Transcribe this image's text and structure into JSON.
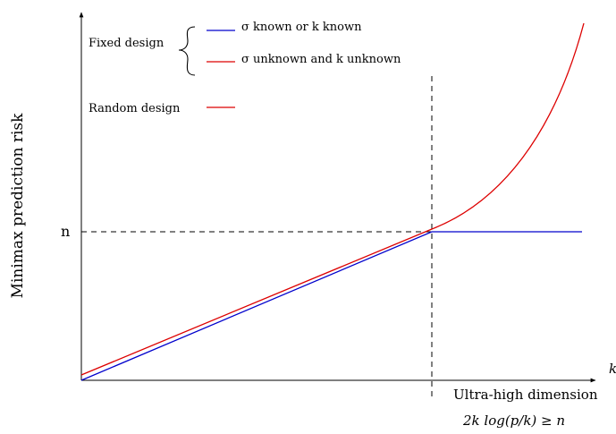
{
  "chart_data": {
    "type": "line",
    "ylabel": "Minimax prediction risk",
    "xlabel": "k",
    "y_tick_label": "n",
    "threshold_label": "Ultra-high dimension",
    "threshold_condition": "2k log(p/k) ≥ n",
    "legend": {
      "fixed_group_label": "Fixed design",
      "fixed_entries": [
        {
          "text": "σ known or k known",
          "color": "#0000cc"
        },
        {
          "text": "σ unknown and k unknown",
          "color": "#dd0000"
        }
      ],
      "random_label": "Random design",
      "random_color": "#dd0000"
    },
    "colors": {
      "blue": "#0000cc",
      "red": "#dd0000",
      "axis": "#000000"
    }
  }
}
